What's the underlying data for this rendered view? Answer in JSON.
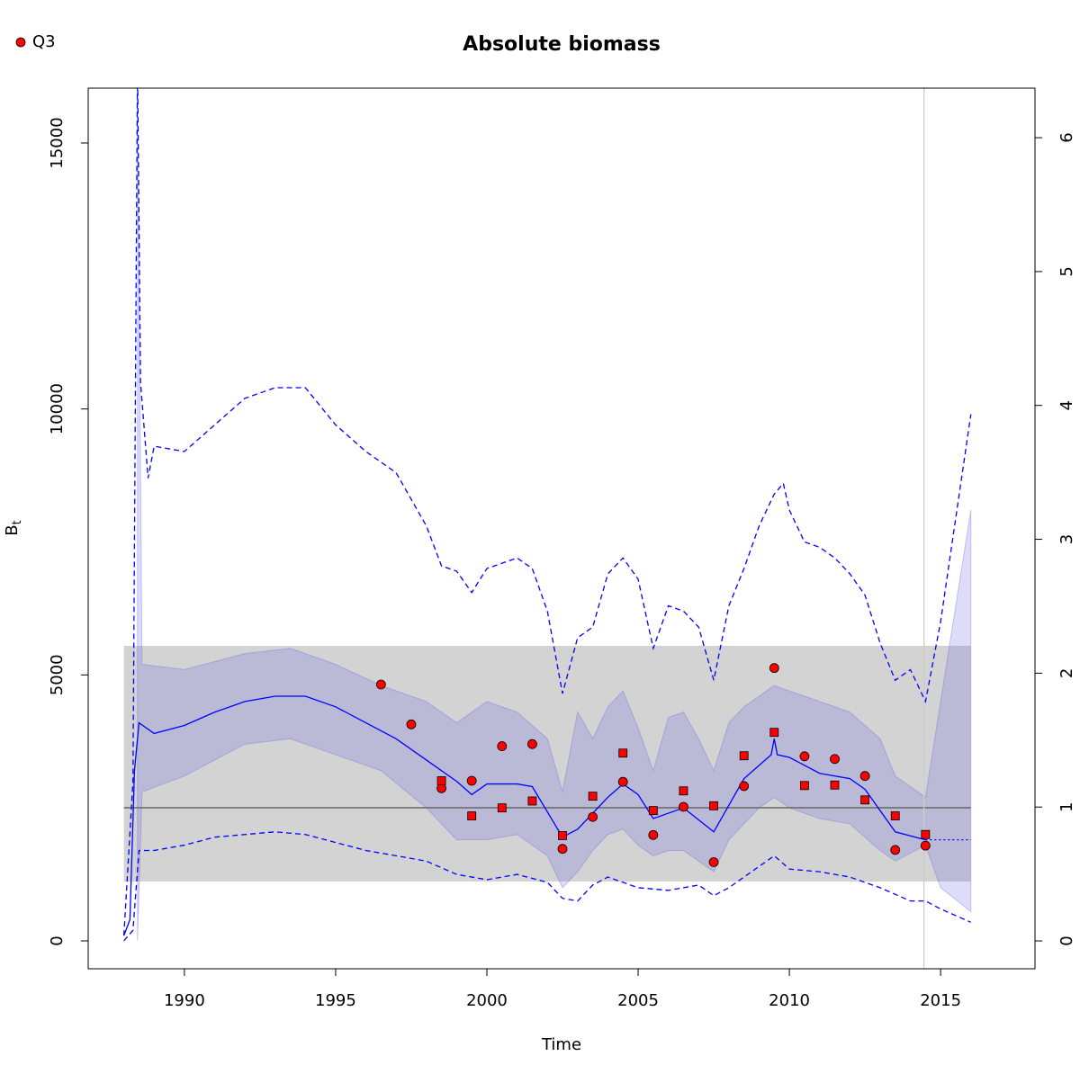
{
  "chart_data": {
    "type": "line",
    "title": "Absolute biomass",
    "xlabel": "Time",
    "ylabel": "B",
    "ylabel_subscript": "t",
    "xlim": [
      1986.82,
      2018.12
    ],
    "ylim": [
      -524,
      16031
    ],
    "y2lim": [
      -0.208,
      6.37
    ],
    "xticks": [
      1990,
      1995,
      2000,
      2005,
      2010,
      2015
    ],
    "yticks": [
      0,
      5000,
      10000,
      15000
    ],
    "y2ticks": [
      0,
      1,
      2,
      3,
      4,
      5,
      6
    ],
    "reference_band": {
      "x": [
        1988,
        2016
      ],
      "y": [
        1116,
        5547
      ],
      "color": "#d3d3d3"
    },
    "reference_line": 2503,
    "vline": 2014.45,
    "legend": "top-left",
    "series": [
      {
        "kind": "band",
        "color": "rgba(100,100,230,0.22)",
        "x": [
          1988.45,
          1988.6,
          1990,
          1992,
          1993.5,
          1995,
          1996.5,
          1998,
          1999,
          2000,
          2001,
          2002,
          2002.5,
          2003,
          2003.5,
          2004,
          2004.5,
          2005,
          2005.5,
          2006,
          2006.5,
          2007,
          2007.5,
          2008,
          2008.5,
          2009,
          2009.5,
          2010,
          2011,
          2012,
          2013,
          2013.5,
          2014.5,
          2015,
          2016
        ],
        "upper": [
          16000,
          5200,
          5100,
          5400,
          5500,
          5200,
          4800,
          4500,
          4100,
          4500,
          4300,
          3800,
          2800,
          4300,
          3800,
          4400,
          4700,
          4000,
          3200,
          4200,
          4300,
          3800,
          3200,
          4100,
          4400,
          4600,
          4800,
          4700,
          4500,
          4300,
          3800,
          3100,
          2700,
          4500,
          8100
        ],
        "lower": [
          0,
          2800,
          3100,
          3700,
          3800,
          3500,
          3200,
          2500,
          1900,
          1900,
          2000,
          1600,
          1000,
          1300,
          1700,
          2000,
          2100,
          1800,
          1600,
          1700,
          1700,
          1500,
          1300,
          1900,
          2200,
          2500,
          2700,
          2500,
          2300,
          2200,
          1700,
          1500,
          1800,
          1000,
          550
        ]
      },
      {
        "kind": "line",
        "style": "solid",
        "color": "#0000ff",
        "x": [
          1988,
          1988.2,
          1988.35,
          1988.5,
          1989,
          1990,
          1991,
          1992,
          1993,
          1994,
          1995,
          1996,
          1996.5,
          1997,
          1998,
          1999,
          1999.5,
          2000,
          2001,
          2001.5,
          2002.5,
          2003,
          2004,
          2004.5,
          2005,
          2005.5,
          2006.5,
          2007.5,
          2008.5,
          2009,
          2009.4,
          2009.5,
          2009.6,
          2010,
          2011,
          2012,
          2012.5,
          2013.5,
          2014.5
        ],
        "values": [
          100,
          400,
          3200,
          4100,
          3900,
          4050,
          4300,
          4500,
          4600,
          4600,
          4400,
          4100,
          3950,
          3800,
          3400,
          3000,
          2750,
          2950,
          2950,
          2900,
          1950,
          2100,
          2700,
          2950,
          2750,
          2300,
          2500,
          2050,
          3050,
          3300,
          3500,
          3800,
          3500,
          3450,
          3150,
          3050,
          2850,
          2050,
          1900
        ]
      },
      {
        "kind": "line",
        "style": "dotted",
        "color": "#0000ff",
        "x": [
          2014.5,
          2016
        ],
        "values": [
          1900,
          1900
        ]
      },
      {
        "kind": "line",
        "style": "dashed",
        "color": "#0000ff",
        "x": [
          1988,
          1988.3,
          1988.45,
          1988.55,
          1988.8,
          1989,
          1990,
          1991,
          1992,
          1993,
          1994,
          1995,
          1996,
          1996.5,
          1997,
          1998,
          1998.5,
          1999,
          1999.5,
          2000,
          2000.5,
          2001,
          2001.5,
          2002,
          2002.5,
          2003,
          2003.5,
          2004,
          2004.5,
          2005,
          2005.5,
          2006,
          2006.5,
          2007,
          2007.5,
          2008,
          2008.5,
          2009,
          2009.5,
          2009.8,
          2010,
          2010.5,
          2011,
          2011.5,
          2012,
          2012.5,
          2013,
          2013.5,
          2014,
          2014.5,
          2015,
          2016
        ],
        "values": [
          100,
          3000,
          16500,
          10500,
          8700,
          9300,
          9200,
          9700,
          10200,
          10400,
          10400,
          9700,
          9200,
          9000,
          8800,
          7800,
          7050,
          6950,
          6550,
          7000,
          7100,
          7200,
          7000,
          6200,
          4650,
          5700,
          5900,
          6900,
          7200,
          6800,
          5500,
          6300,
          6200,
          5900,
          4900,
          6300,
          7000,
          7800,
          8400,
          8600,
          8100,
          7500,
          7400,
          7200,
          6900,
          6500,
          5600,
          4900,
          5100,
          4500,
          6000,
          9900
        ]
      },
      {
        "kind": "line",
        "style": "dashed",
        "color": "#0000ff",
        "x": [
          1988,
          1988.3,
          1988.5,
          1989,
          1990,
          1991,
          1992,
          1993,
          1994,
          1995,
          1996,
          1997,
          1998,
          1999,
          2000,
          2001,
          2002,
          2002.5,
          2003,
          2003.5,
          2004,
          2005,
          2006,
          2007,
          2007.5,
          2008,
          2009,
          2009.5,
          2010,
          2011,
          2012,
          2013,
          2014,
          2014.5,
          2015,
          2016
        ],
        "values": [
          0,
          200,
          1700,
          1700,
          1800,
          1950,
          2000,
          2050,
          2000,
          1850,
          1700,
          1600,
          1500,
          1250,
          1150,
          1250,
          1100,
          800,
          750,
          1050,
          1200,
          1000,
          950,
          1050,
          850,
          1000,
          1400,
          1600,
          1350,
          1300,
          1200,
          1000,
          750,
          750,
          600,
          350
        ]
      },
      {
        "kind": "points",
        "shape": "circle",
        "name": "Q3",
        "color": "#ff0000",
        "x": [
          1996.5,
          1997.5,
          1998.5,
          1999.5,
          2000.5,
          2001.5,
          2002.5,
          2003.5,
          2004.5,
          2005.5,
          2006.5,
          2007.5,
          2008.5,
          2009.5,
          2010.5,
          2011.5,
          2012.5,
          2013.5,
          2014.5
        ],
        "values": [
          4820,
          4070,
          2870,
          3010,
          3660,
          3700,
          1730,
          2330,
          2990,
          1990,
          2520,
          1480,
          2910,
          5130,
          3470,
          3420,
          3100,
          1710,
          1790
        ]
      },
      {
        "kind": "points",
        "shape": "square",
        "color": "#ff0000",
        "x": [
          1998.5,
          1999.5,
          2000.5,
          2001.5,
          2002.5,
          2003.5,
          2004.5,
          2005.5,
          2006.5,
          2007.5,
          2008.5,
          2009.5,
          2010.5,
          2011.5,
          2012.5,
          2013.5,
          2014.5
        ],
        "values": [
          3010,
          2350,
          2500,
          2630,
          1980,
          2720,
          3530,
          2450,
          2820,
          2540,
          3480,
          3920,
          2920,
          2930,
          2650,
          2350,
          2000
        ]
      }
    ]
  }
}
